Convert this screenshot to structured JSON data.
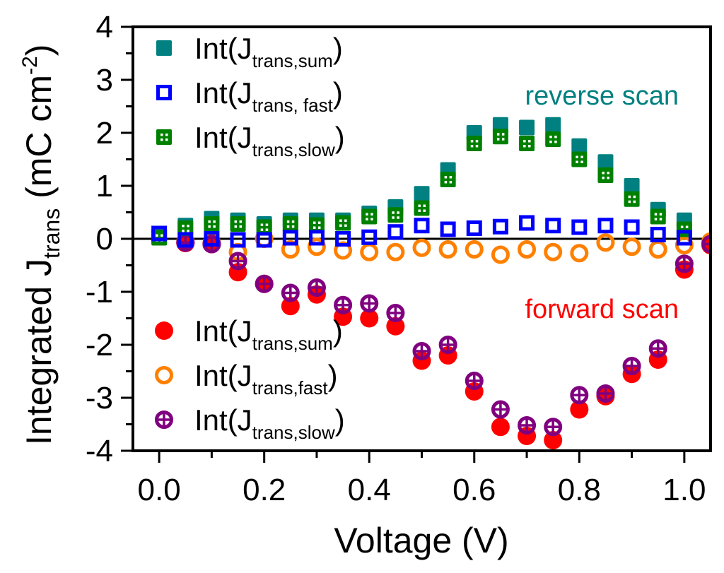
{
  "chart_data": {
    "type": "scatter",
    "title": "",
    "xlabel": "Voltage (V)",
    "ylabel": {
      "main": "Integrated J",
      "sub": "trans",
      "units": " (mC cm",
      "units_sup": "-2",
      "units_end": ")"
    },
    "xlim": [
      -0.05,
      1.05
    ],
    "ylim": [
      -4,
      4
    ],
    "xticks": [
      0.0,
      0.2,
      0.4,
      0.6,
      0.8,
      1.0
    ],
    "xtick_labels": [
      "0.0",
      "0.2",
      "0.4",
      "0.6",
      "0.8",
      "1.0"
    ],
    "x_minor_ticks": [
      0.1,
      0.3,
      0.5,
      0.7,
      0.9
    ],
    "yticks": [
      -4,
      -3,
      -2,
      -1,
      0,
      1,
      2,
      3,
      4
    ],
    "ytick_labels": [
      "-4",
      "-3",
      "-2",
      "-1",
      "0",
      "1",
      "2",
      "3",
      "4"
    ],
    "y_minor_ticks": [
      -3.5,
      -2.5,
      -1.5,
      -0.5,
      0.5,
      1.5,
      2.5,
      3.5
    ],
    "grid": false,
    "zero_line": true,
    "annotations": [
      {
        "text": "reverse scan",
        "color": "#008080",
        "position": "top-right"
      },
      {
        "text": "forward scan",
        "color": "#ff0000",
        "position": "middle-right"
      }
    ],
    "legends": [
      {
        "position": "top-left",
        "entries": [
          {
            "series": 0,
            "prefix": "Int(J",
            "sub": "trans,sum",
            "suffix": ")"
          },
          {
            "series": 1,
            "prefix": "Int(J",
            "sub": "trans, fast",
            "suffix": ")"
          },
          {
            "series": 2,
            "prefix": "Int(J",
            "sub": "trans,slow",
            "suffix": ")"
          }
        ]
      },
      {
        "position": "bottom-left",
        "entries": [
          {
            "series": 3,
            "prefix": "Int(J",
            "sub": "trans,sum",
            "suffix": ")"
          },
          {
            "series": 4,
            "prefix": "Int(J",
            "sub": "trans,fast",
            "suffix": ")"
          },
          {
            "series": 5,
            "prefix": "Int(J",
            "sub": "trans,slow",
            "suffix": ")"
          }
        ]
      }
    ],
    "series": [
      {
        "name": "Int(J_trans,sum) reverse scan",
        "marker": "filled-square",
        "color": "#008080",
        "x": [
          0.0,
          0.05,
          0.1,
          0.15,
          0.2,
          0.25,
          0.3,
          0.35,
          0.4,
          0.45,
          0.5,
          0.55,
          0.6,
          0.65,
          0.7,
          0.75,
          0.8,
          0.85,
          0.9,
          0.95,
          1.0
        ],
        "y": [
          0.05,
          0.25,
          0.38,
          0.35,
          0.28,
          0.35,
          0.35,
          0.35,
          0.48,
          0.6,
          0.85,
          1.3,
          2.0,
          2.15,
          2.1,
          2.15,
          1.75,
          1.45,
          1.0,
          0.55,
          0.35
        ]
      },
      {
        "name": "Int(J_trans,fast) reverse scan",
        "marker": "open-square",
        "color": "#0000ff",
        "x": [
          0.0,
          0.05,
          0.1,
          0.15,
          0.2,
          0.25,
          0.3,
          0.35,
          0.4,
          0.45,
          0.5,
          0.55,
          0.6,
          0.65,
          0.7,
          0.75,
          0.8,
          0.85,
          0.9,
          0.95,
          1.0
        ],
        "y": [
          0.1,
          -0.02,
          0.0,
          -0.02,
          -0.02,
          0.02,
          0.02,
          0.0,
          0.03,
          0.13,
          0.25,
          0.18,
          0.2,
          0.23,
          0.3,
          0.25,
          0.22,
          0.25,
          0.22,
          0.08,
          0.02
        ]
      },
      {
        "name": "Int(J_trans,slow) reverse scan",
        "marker": "square-grid",
        "color": "#008000",
        "x": [
          0.0,
          0.05,
          0.1,
          0.15,
          0.2,
          0.25,
          0.3,
          0.35,
          0.4,
          0.45,
          0.5,
          0.55,
          0.6,
          0.65,
          0.7,
          0.75,
          0.8,
          0.85,
          0.9,
          0.95,
          1.0
        ],
        "y": [
          0.02,
          0.2,
          0.28,
          0.28,
          0.22,
          0.28,
          0.26,
          0.3,
          0.42,
          0.45,
          0.58,
          1.12,
          1.8,
          1.93,
          1.8,
          1.88,
          1.5,
          1.2,
          0.75,
          0.42,
          0.18
        ]
      },
      {
        "name": "Int(J_trans,sum) forward scan",
        "marker": "filled-circle",
        "color": "#ff0000",
        "x": [
          0.05,
          0.1,
          0.15,
          0.2,
          0.25,
          0.3,
          0.35,
          0.4,
          0.45,
          0.5,
          0.55,
          0.6,
          0.65,
          0.7,
          0.75,
          0.8,
          0.85,
          0.9,
          0.95,
          1.0,
          1.05
        ],
        "y": [
          -0.08,
          -0.1,
          -0.63,
          -0.85,
          -1.27,
          -1.05,
          -1.47,
          -1.5,
          -1.65,
          -2.3,
          -2.2,
          -2.88,
          -3.55,
          -3.72,
          -3.8,
          -3.22,
          -2.97,
          -2.55,
          -2.28,
          -0.58,
          -0.12
        ]
      },
      {
        "name": "Int(J_trans,fast) forward scan",
        "marker": "open-circle",
        "color": "#ff8000",
        "x": [
          0.05,
          0.1,
          0.15,
          0.2,
          0.25,
          0.3,
          0.35,
          0.4,
          0.45,
          0.5,
          0.55,
          0.6,
          0.65,
          0.7,
          0.75,
          0.8,
          0.85,
          0.9,
          0.95,
          1.0,
          1.05
        ],
        "y": [
          -0.05,
          -0.08,
          -0.25,
          0.0,
          -0.2,
          -0.15,
          -0.22,
          -0.25,
          -0.25,
          -0.17,
          -0.2,
          -0.2,
          -0.3,
          -0.2,
          -0.25,
          -0.27,
          -0.07,
          -0.15,
          -0.2,
          -0.12,
          -0.05
        ]
      },
      {
        "name": "Int(J_trans,slow) forward scan",
        "marker": "circle-cross",
        "color": "#800080",
        "x": [
          0.05,
          0.1,
          0.15,
          0.2,
          0.25,
          0.3,
          0.35,
          0.4,
          0.45,
          0.5,
          0.55,
          0.6,
          0.65,
          0.7,
          0.75,
          0.8,
          0.85,
          0.9,
          0.95,
          1.0,
          1.05
        ],
        "y": [
          -0.07,
          -0.1,
          -0.42,
          -0.85,
          -1.02,
          -0.92,
          -1.25,
          -1.22,
          -1.4,
          -2.12,
          -2.0,
          -2.68,
          -3.22,
          -3.52,
          -3.55,
          -2.95,
          -2.92,
          -2.4,
          -2.07,
          -0.47,
          -0.1
        ]
      }
    ]
  }
}
